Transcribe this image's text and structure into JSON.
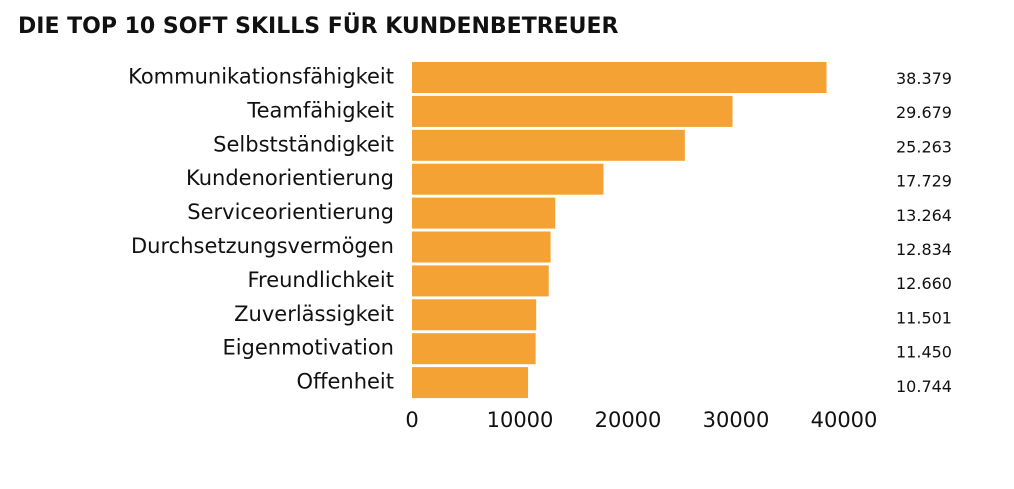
{
  "chart_data": {
    "type": "bar",
    "orientation": "horizontal",
    "title": "DIE TOP 10 SOFT SKILLS FÜR KUNDENBETREUER",
    "categories": [
      "Kommunikationsfähigkeit",
      "Teamfähigkeit",
      "Selbstständigkeit",
      "Kundenorientierung",
      "Serviceorientierung",
      "Durchsetzungsvermögen",
      "Freundlichkeit",
      "Zuverlässigkeit",
      "Eigenmotivation",
      "Offenheit"
    ],
    "values": [
      38379,
      29679,
      25263,
      17729,
      13264,
      12834,
      12660,
      11501,
      11450,
      10744
    ],
    "value_labels": [
      "38.379",
      "29.679",
      "25.263",
      "17.729",
      "13.264",
      "12.834",
      "12.660",
      "11.501",
      "11.450",
      "10.744"
    ],
    "color": "#f4a233",
    "xlim": [
      0,
      40000
    ],
    "xticks": [
      0,
      10000,
      20000,
      30000,
      40000
    ],
    "grid": false
  }
}
